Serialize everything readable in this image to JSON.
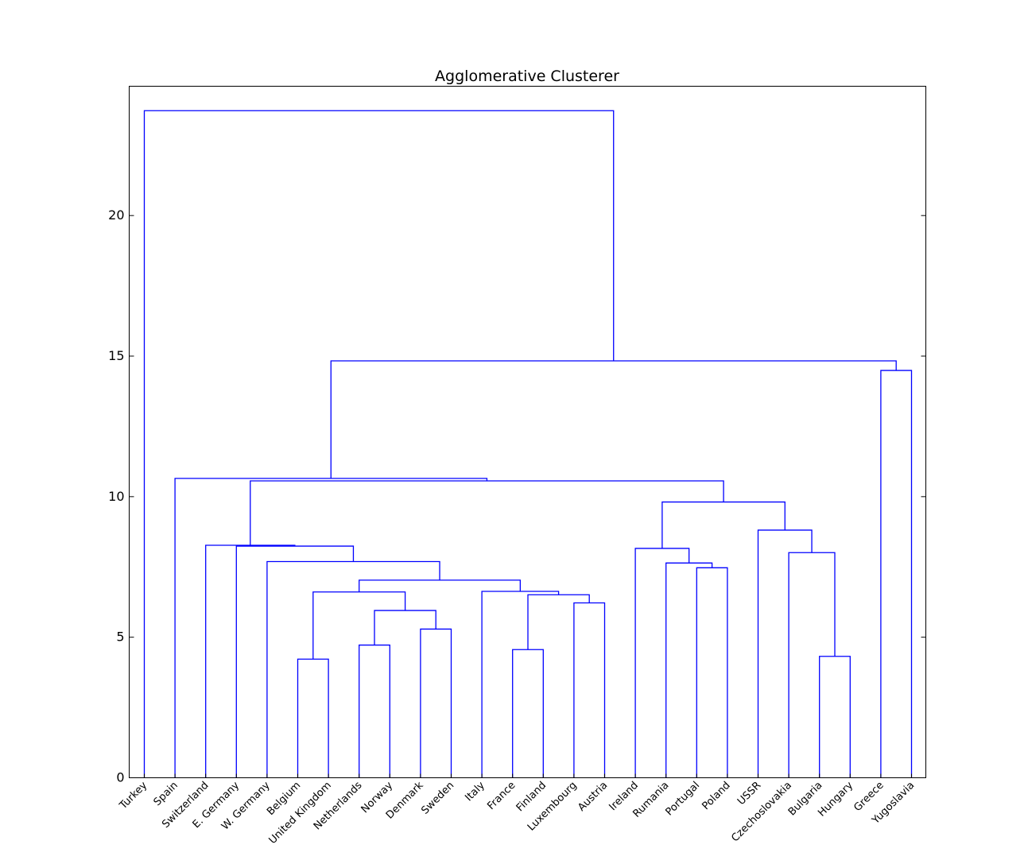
{
  "chart_data": {
    "type": "dendrogram",
    "title": "Agglomerative Clusterer",
    "xlabel": "",
    "ylabel": "",
    "ylim": [
      0,
      24.6
    ],
    "yticks": [
      0,
      5,
      10,
      15,
      20
    ],
    "grid": false,
    "link_color": "#0000ff",
    "leaves": [
      "Turkey",
      "Spain",
      "Switzerland",
      "E. Germany",
      "W. Germany",
      "Belgium",
      "United Kingdom",
      "Netherlands",
      "Norway",
      "Denmark",
      "Sweden",
      "Italy",
      "France",
      "Finland",
      "Luxembourg",
      "Austria",
      "Ireland",
      "Rumania",
      "Portugal",
      "Poland",
      "USSR",
      "Czechoslovakia",
      "Bulgaria",
      "Hungary",
      "Greece",
      "Yugoslavia"
    ],
    "merges": [
      {
        "left": "Belgium",
        "right": "United Kingdom",
        "height": 4.22
      },
      {
        "left": "Bulgaria",
        "right": "Hungary",
        "height": 4.32
      },
      {
        "left": "France",
        "right": "Finland",
        "height": 4.56
      },
      {
        "left": "Netherlands",
        "right": "Norway",
        "height": 4.72
      },
      {
        "left": "Denmark",
        "right": "Sweden",
        "height": 5.29
      },
      {
        "left": "Netherlands+Norway",
        "right": "Denmark+Sweden",
        "height": 5.95
      },
      {
        "left": "Luxembourg",
        "right": "Austria",
        "height": 6.22
      },
      {
        "left": "France+Finland",
        "right": "Luxembourg+Austria",
        "height": 6.51
      },
      {
        "left": "Belgium+United Kingdom",
        "right": "Netherlands..Sweden",
        "height": 6.61
      },
      {
        "left": "Italy",
        "right": "France..Austria",
        "height": 6.63
      },
      {
        "left": "Belgium..Sweden",
        "right": "Italy..Austria",
        "height": 7.03
      },
      {
        "left": "Portugal",
        "right": "Poland",
        "height": 7.47
      },
      {
        "left": "Rumania",
        "right": "Portugal+Poland",
        "height": 7.64
      },
      {
        "left": "W. Germany",
        "right": "Belgium..Austria",
        "height": 7.69
      },
      {
        "left": "Czechoslovakia",
        "right": "Bulgaria+Hungary",
        "height": 8.01
      },
      {
        "left": "Ireland",
        "right": "Rumania..Poland",
        "height": 8.16
      },
      {
        "left": "E. Germany",
        "right": "W. Germany..Austria",
        "height": 8.24
      },
      {
        "left": "Switzerland",
        "right": "E. Germany..Austria",
        "height": 8.27
      },
      {
        "left": "USSR",
        "right": "Czechoslovakia..Hungary",
        "height": 8.81
      },
      {
        "left": "Ireland..Poland",
        "right": "USSR..Hungary",
        "height": 9.81
      },
      {
        "left": "Switzerland..Austria",
        "right": "Ireland..Hungary",
        "height": 10.56
      },
      {
        "left": "Spain",
        "right": "Switzerland..Hungary",
        "height": 10.65
      },
      {
        "left": "Greece",
        "right": "Yugoslavia",
        "height": 14.49
      },
      {
        "left": "Spain..Hungary",
        "right": "Greece+Yugoslavia",
        "height": 14.83
      },
      {
        "left": "Turkey",
        "right": "Spain..Yugoslavia",
        "height": 23.73
      }
    ]
  }
}
